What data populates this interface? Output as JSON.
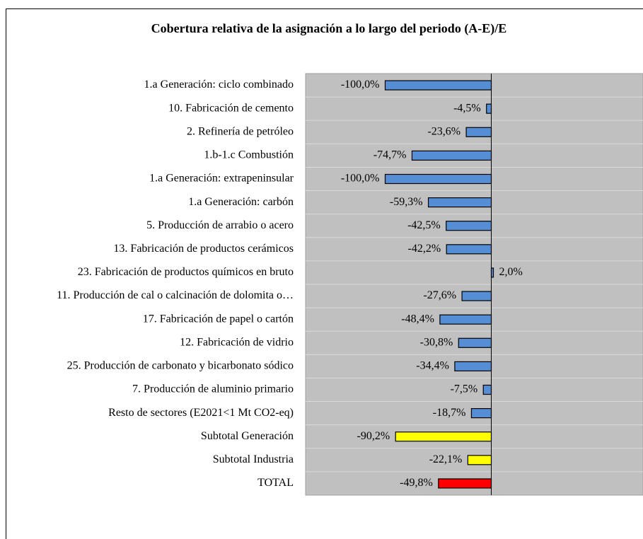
{
  "chart_data": {
    "type": "bar",
    "orientation": "horizontal",
    "title": "Cobertura relativa de la asignación a lo largo del periodo (A-E)/E",
    "categories": [
      "1.a Generación: ciclo combinado",
      "10. Fabricación de cemento",
      "2. Refinería de petróleo",
      "1.b-1.c Combustión",
      "1.a Generación: extrapeninsular",
      "1.a Generación: carbón",
      "5. Producción de arrabio o acero",
      "13. Fabricación de productos cerámicos",
      "23. Fabricación de productos químicos en bruto",
      "11. Producción de cal o calcinación de dolomita o…",
      "17. Fabricación de papel o cartón",
      "12. Fabricación de vidrio",
      "25. Producción de carbonato y bicarbonato sódico",
      "7. Producción de aluminio primario",
      "Resto de sectores (E2021<1 Mt CO2-eq)",
      "Subtotal Generación",
      "Subtotal Industria",
      "TOTAL"
    ],
    "values": [
      -100,
      -4.5,
      -23.6,
      -74.7,
      -100,
      -59.3,
      -42.5,
      -42.2,
      2,
      -27.6,
      -48.4,
      -30.8,
      -34.4,
      -7.5,
      -18.7,
      -90.2,
      -22.1,
      -49.8
    ],
    "value_labels": [
      "-100,0%",
      "-4,5%",
      "-23,6%",
      "-74,7%",
      "-100,0%",
      "-59,3%",
      "-42,5%",
      "-42,2%",
      "2,0%",
      "-27,6%",
      "-48,4%",
      "-30,8%",
      "-34,4%",
      "-7,5%",
      "-18,7%",
      "-90,2%",
      "-22,1%",
      "-49,8%"
    ],
    "colors": [
      "#558ed5",
      "#558ed5",
      "#558ed5",
      "#558ed5",
      "#558ed5",
      "#558ed5",
      "#558ed5",
      "#558ed5",
      "#558ed5",
      "#558ed5",
      "#558ed5",
      "#558ed5",
      "#558ed5",
      "#558ed5",
      "#558ed5",
      "#ffff00",
      "#ffff00",
      "#ff0000"
    ],
    "xlim": [
      -175,
      143
    ]
  }
}
